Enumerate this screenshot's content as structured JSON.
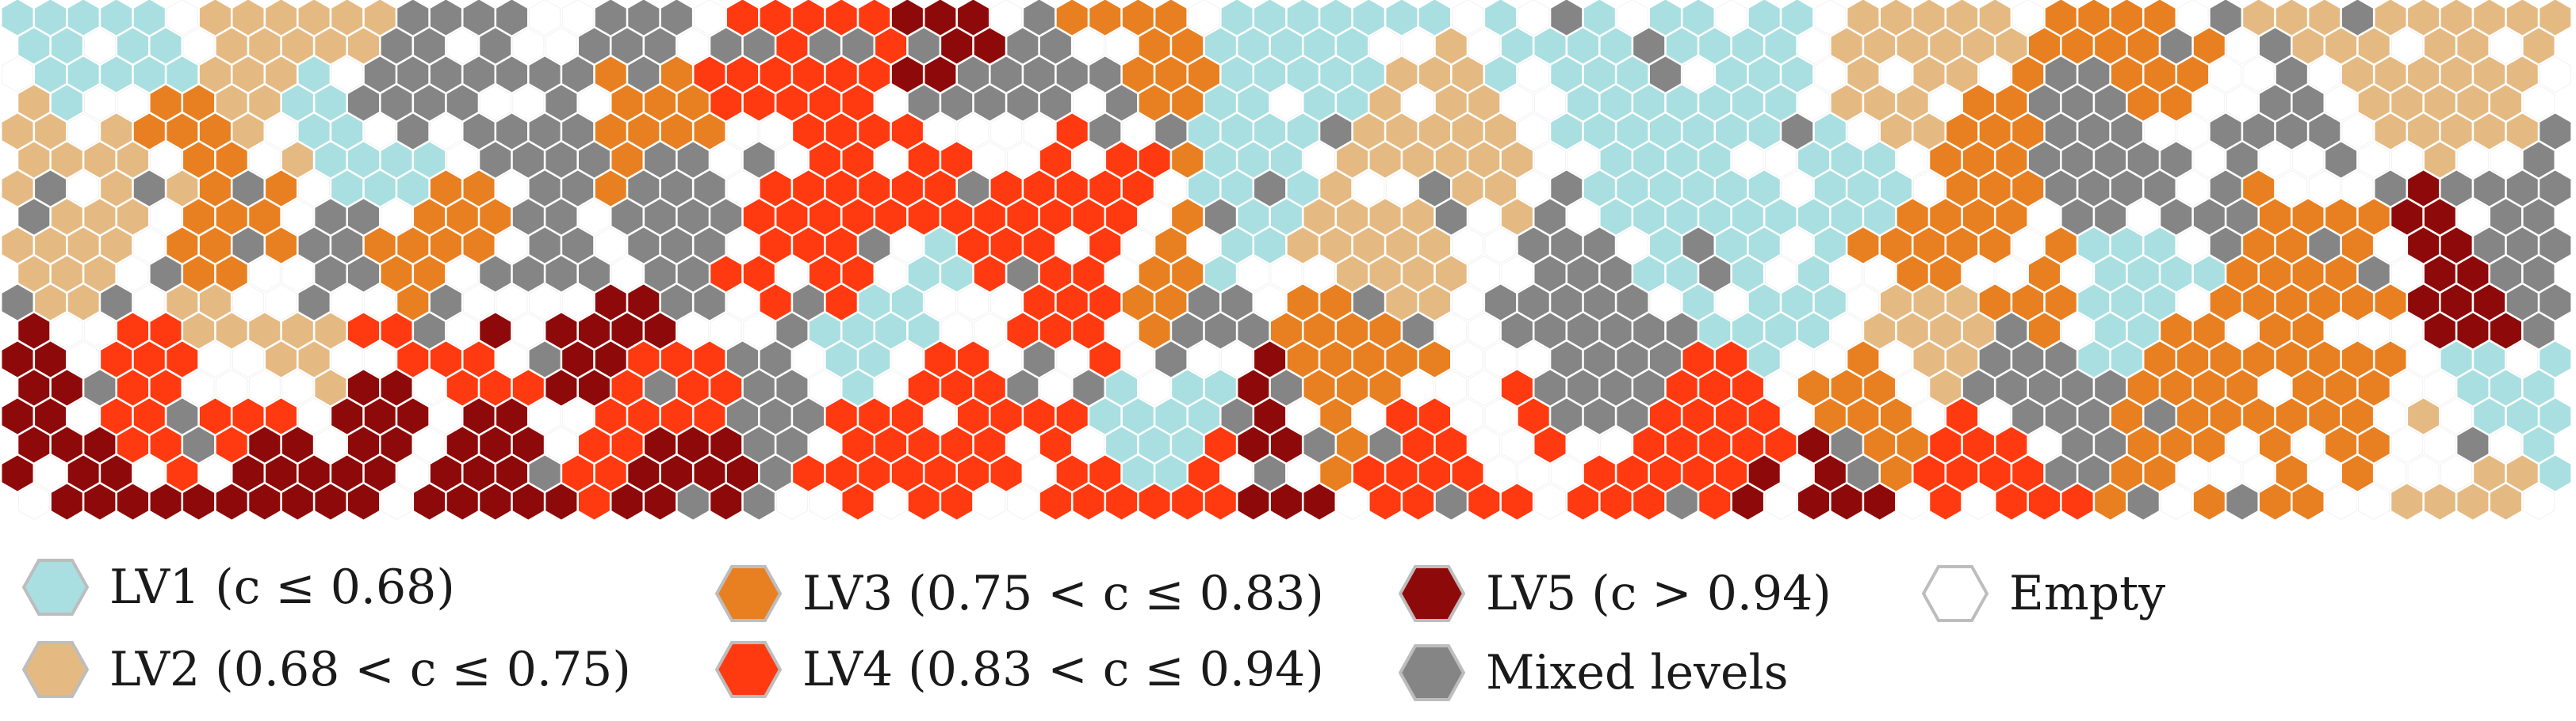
{
  "legend": {
    "items": [
      {
        "key": "lv1",
        "label": "LV1 (c ≤ 0.68)",
        "color": "#A9DFE0",
        "icon": "hexagon-icon"
      },
      {
        "key": "lv2",
        "label": "LV2 (0.68 < c ≤ 0.75)",
        "color": "#E5BA82",
        "icon": "hexagon-icon"
      },
      {
        "key": "lv3",
        "label": "LV3 (0.75 < c ≤ 0.83)",
        "color": "#E88021",
        "icon": "hexagon-icon"
      },
      {
        "key": "lv4",
        "label": "LV4 (0.83 < c ≤ 0.94)",
        "color": "#FF3A10",
        "icon": "hexagon-icon"
      },
      {
        "key": "lv5",
        "label": "LV5 (c > 0.94)",
        "color": "#8E0A0A",
        "icon": "hexagon-icon"
      },
      {
        "key": "mixed",
        "label": "Mixed levels",
        "color": "#858585",
        "icon": "hexagon-icon"
      },
      {
        "key": "empty",
        "label": "Empty",
        "color": "#FFFFFF",
        "icon": "hexagon-outline-icon"
      }
    ]
  },
  "map": {
    "cell_shape": "hexagon",
    "palette": {
      "lv1": "#A9DFE0",
      "lv2": "#E5BA82",
      "lv3": "#E88021",
      "lv4": "#FF3A10",
      "lv5": "#8E0A0A",
      "mixed": "#858585",
      "empty": "#FFFFFF"
    }
  }
}
